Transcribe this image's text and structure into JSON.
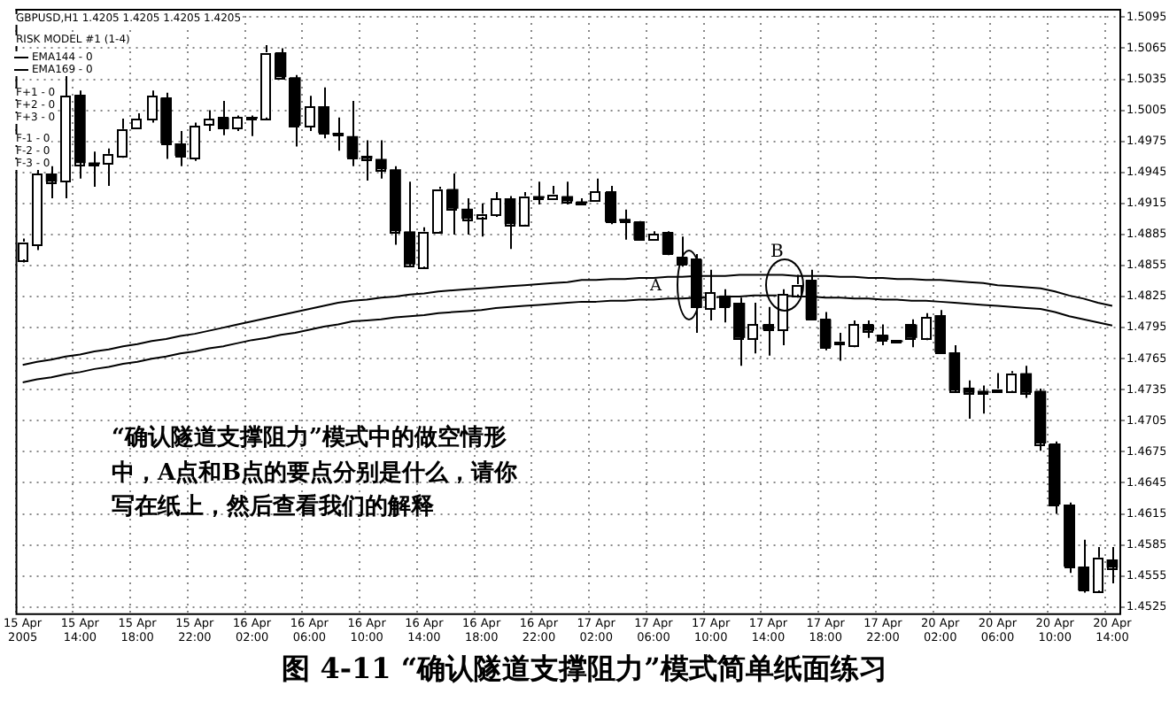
{
  "chart_data": {
    "type": "candlestick",
    "title": "图 4-11 “确认隧道支撑阻力”模式简单纸面练习",
    "categories": [
      "15 Apr 2005",
      null,
      null,
      null,
      "15 Apr 14:00",
      null,
      null,
      null,
      "15 Apr 18:00",
      null,
      null,
      null,
      "15 Apr 22:00",
      null,
      null,
      null,
      "16 Apr 02:00",
      null,
      null,
      null,
      "16 Apr 06:00",
      null,
      null,
      null,
      "16 Apr 10:00",
      null,
      null,
      null,
      "16 Apr 14:00",
      null,
      null,
      null,
      "16 Apr 18:00",
      null,
      null,
      null,
      "16 Apr 22:00",
      null,
      null,
      null,
      "17 Apr 02:00",
      null,
      null,
      null,
      "17 Apr 06:00",
      null,
      null,
      null,
      "17 Apr 10:00",
      null,
      null,
      null,
      "17 Apr 14:00",
      null,
      null,
      null,
      "17 Apr 18:00",
      null,
      null,
      null,
      "17 Apr 22:00",
      null,
      null,
      null,
      "20 Apr 02:00",
      null,
      null,
      null,
      "20 Apr 06:00",
      null,
      null,
      null,
      "20 Apr 10:00",
      null,
      null,
      null,
      "20 Apr 14:00"
    ],
    "series": [
      {
        "color": "#000000",
        "ohlc": [
          [
            1.4861,
            1.4881,
            1.4858,
            1.4878
          ],
          [
            1.4875,
            1.4948,
            1.487,
            1.4944
          ],
          [
            1.4944,
            1.4951,
            1.492,
            1.4936
          ],
          [
            1.4937,
            1.5041,
            1.492,
            1.5019
          ],
          [
            1.502,
            1.5024,
            1.4939,
            1.4954
          ],
          [
            1.4954,
            1.4965,
            1.4931,
            1.4953
          ],
          [
            1.4954,
            1.4968,
            1.4932,
            1.4963
          ],
          [
            1.4961,
            1.4997,
            1.4959,
            1.4987
          ],
          [
            1.4988,
            1.5002,
            1.4987,
            1.4997
          ],
          [
            1.4997,
            1.5024,
            1.4993,
            1.5019
          ],
          [
            1.5017,
            1.5022,
            1.4958,
            1.4973
          ],
          [
            1.4973,
            1.4985,
            1.4951,
            1.4961
          ],
          [
            1.4959,
            1.4993,
            1.4956,
            1.499
          ],
          [
            1.4992,
            1.5005,
            1.4985,
            1.4997
          ],
          [
            1.4998,
            1.5014,
            1.4981,
            1.4987
          ],
          [
            1.4988,
            1.5,
            1.4985,
            1.4998
          ],
          [
            1.4998,
            1.5,
            1.498,
            1.4997
          ],
          [
            1.4998,
            1.5068,
            1.4997,
            1.5061
          ],
          [
            1.5061,
            1.5065,
            1.5036,
            1.5037
          ],
          [
            1.5037,
            1.5039,
            1.497,
            1.499
          ],
          [
            1.499,
            1.5019,
            1.4985,
            1.5009
          ],
          [
            1.5009,
            1.5027,
            1.4978,
            1.4983
          ],
          [
            1.4983,
            1.4998,
            1.4966,
            1.4981
          ],
          [
            1.498,
            1.5014,
            1.4951,
            1.4959
          ],
          [
            1.4961,
            1.4976,
            1.4937,
            1.4958
          ],
          [
            1.4958,
            1.4976,
            1.4939,
            1.4948
          ],
          [
            1.4948,
            1.4951,
            1.4875,
            1.4888
          ],
          [
            1.4888,
            1.4936,
            1.4854,
            1.4856
          ],
          [
            1.4854,
            1.4892,
            1.4853,
            1.4888
          ],
          [
            1.4888,
            1.4931,
            1.4887,
            1.4929
          ],
          [
            1.4929,
            1.4944,
            1.4885,
            1.491
          ],
          [
            1.491,
            1.492,
            1.4885,
            1.49
          ],
          [
            1.4902,
            1.4915,
            1.4883,
            1.4905
          ],
          [
            1.4904,
            1.4926,
            1.4902,
            1.492
          ],
          [
            1.492,
            1.4922,
            1.4871,
            1.4895
          ],
          [
            1.4895,
            1.4926,
            1.4895,
            1.4922
          ],
          [
            1.4922,
            1.4936,
            1.4914,
            1.492
          ],
          [
            1.492,
            1.4932,
            1.4919,
            1.4924
          ],
          [
            1.4922,
            1.4936,
            1.4914,
            1.4917
          ],
          [
            1.4917,
            1.492,
            1.4914,
            1.4915
          ],
          [
            1.4917,
            1.4939,
            1.4917,
            1.4926
          ],
          [
            1.4926,
            1.4932,
            1.4895,
            1.4897
          ],
          [
            1.49,
            1.4909,
            1.488,
            1.4898
          ],
          [
            1.4897,
            1.4898,
            1.488,
            1.488
          ],
          [
            1.488,
            1.4888,
            1.488,
            1.4885
          ],
          [
            1.4887,
            1.4888,
            1.4865,
            1.4866
          ],
          [
            1.4863,
            1.4883,
            1.4854,
            1.4856
          ],
          [
            1.4861,
            1.4866,
            1.479,
            1.4814
          ],
          [
            1.4814,
            1.4851,
            1.4802,
            1.4829
          ],
          [
            1.4826,
            1.4832,
            1.48,
            1.4815
          ],
          [
            1.4819,
            1.4824,
            1.4758,
            1.4785
          ],
          [
            1.4785,
            1.4819,
            1.477,
            1.4798
          ],
          [
            1.4798,
            1.4815,
            1.4768,
            1.4793
          ],
          [
            1.4793,
            1.4832,
            1.4778,
            1.4827
          ],
          [
            1.4827,
            1.4846,
            1.4824,
            1.4837
          ],
          [
            1.4841,
            1.4851,
            1.4802,
            1.4803
          ],
          [
            1.4803,
            1.481,
            1.4773,
            1.4776
          ],
          [
            1.478,
            1.479,
            1.4763,
            1.4781
          ],
          [
            1.4778,
            1.4802,
            1.4776,
            1.4798
          ],
          [
            1.4798,
            1.4802,
            1.4785,
            1.4792
          ],
          [
            1.4788,
            1.4798,
            1.4778,
            1.4783
          ],
          [
            1.4781,
            1.4783,
            1.478,
            1.4781
          ],
          [
            1.4798,
            1.4803,
            1.4776,
            1.4785
          ],
          [
            1.4785,
            1.4809,
            1.4783,
            1.4805
          ],
          [
            1.4807,
            1.4812,
            1.477,
            1.4771
          ],
          [
            1.4771,
            1.4778,
            1.4732,
            1.4734
          ],
          [
            1.4737,
            1.4744,
            1.4707,
            1.4732
          ],
          [
            1.4734,
            1.4739,
            1.4712,
            1.4732
          ],
          [
            1.4734,
            1.4751,
            1.4732,
            1.4736
          ],
          [
            1.4734,
            1.4753,
            1.4732,
            1.4751
          ],
          [
            1.4751,
            1.4758,
            1.4727,
            1.4732
          ],
          [
            1.4734,
            1.4736,
            1.4676,
            1.4683
          ],
          [
            1.4683,
            1.4685,
            1.4615,
            1.4624
          ],
          [
            1.4624,
            1.4626,
            1.4558,
            1.4564
          ],
          [
            1.4564,
            1.459,
            1.4539,
            1.4541
          ],
          [
            1.4541,
            1.4583,
            1.4539,
            1.4573
          ],
          [
            1.4571,
            1.4583,
            1.4548,
            1.4563
          ]
        ],
        "colors": [
          "#ffffff",
          "#ffffff",
          "#000000",
          "#ffffff",
          "#000000",
          "#000000",
          "#ffffff",
          "#ffffff",
          "#ffffff",
          "#ffffff",
          "#000000",
          "#000000",
          "#ffffff",
          "#ffffff",
          "#000000",
          "#ffffff",
          "#000000",
          "#ffffff",
          "#000000",
          "#000000",
          "#ffffff",
          "#000000",
          "#000000",
          "#000000",
          "#000000",
          "#000000",
          "#000000",
          "#000000",
          "#ffffff",
          "#ffffff",
          "#000000",
          "#000000",
          "#ffffff",
          "#ffffff",
          "#000000",
          "#ffffff",
          "#000000",
          "#ffffff",
          "#000000",
          "#000000",
          "#ffffff",
          "#000000",
          "#000000",
          "#000000",
          "#ffffff",
          "#000000",
          "#000000",
          "#000000",
          "#ffffff",
          "#000000",
          "#000000",
          "#ffffff",
          "#000000",
          "#ffffff",
          "#ffffff",
          "#000000",
          "#000000",
          "#ffffff",
          "#ffffff",
          "#000000",
          "#000000",
          "#000000",
          "#000000",
          "#ffffff",
          "#000000",
          "#000000",
          "#000000",
          "#000000",
          "#ffffff",
          "#ffffff",
          "#000000",
          "#000000",
          "#000000",
          "#000000",
          "#000000",
          "#ffffff",
          "#000000"
        ]
      },
      {
        "type": "line",
        "name": "EMA144 - 0",
        "color": "#000000",
        "values": [
          1.4759,
          1.4762,
          1.4764,
          1.4767,
          1.4769,
          1.4772,
          1.4774,
          1.4777,
          1.4779,
          1.4782,
          1.4784,
          1.4787,
          1.4789,
          1.4792,
          1.4795,
          1.4798,
          1.4801,
          1.4804,
          1.4807,
          1.481,
          1.4813,
          1.4816,
          1.4819,
          1.4821,
          1.4822,
          1.4824,
          1.4825,
          1.4827,
          1.4828,
          1.483,
          1.4831,
          1.4832,
          1.4833,
          1.4834,
          1.4835,
          1.4836,
          1.4837,
          1.4838,
          1.4839,
          1.4841,
          1.4841,
          1.4842,
          1.4842,
          1.4843,
          1.4843,
          1.4844,
          1.4844,
          1.4845,
          1.4845,
          1.4845,
          1.4846,
          1.4846,
          1.4846,
          1.4846,
          1.4845,
          1.4845,
          1.4845,
          1.4844,
          1.4844,
          1.4843,
          1.4843,
          1.4842,
          1.4842,
          1.4841,
          1.4841,
          1.484,
          1.4839,
          1.4838,
          1.4836,
          1.4835,
          1.4834,
          1.4833,
          1.483,
          1.4826,
          1.4823,
          1.4819,
          1.4816
        ]
      },
      {
        "type": "line",
        "name": "EMA169 - 0",
        "color": "#000000",
        "values": [
          1.4742,
          1.4745,
          1.4747,
          1.475,
          1.4752,
          1.4755,
          1.4757,
          1.476,
          1.4762,
          1.4765,
          1.4767,
          1.477,
          1.4772,
          1.4775,
          1.4777,
          1.478,
          1.4783,
          1.4785,
          1.4788,
          1.479,
          1.4793,
          1.4796,
          1.4798,
          1.4801,
          1.4802,
          1.4803,
          1.4805,
          1.4806,
          1.4807,
          1.4809,
          1.481,
          1.4811,
          1.4812,
          1.4814,
          1.4815,
          1.4816,
          1.4817,
          1.4818,
          1.4819,
          1.482,
          1.482,
          1.4821,
          1.4821,
          1.4822,
          1.4822,
          1.4823,
          1.4823,
          1.4824,
          1.4824,
          1.4825,
          1.4825,
          1.4826,
          1.4826,
          1.4826,
          1.4825,
          1.4825,
          1.4824,
          1.4824,
          1.4823,
          1.4823,
          1.4822,
          1.4822,
          1.4821,
          1.4821,
          1.482,
          1.4819,
          1.4818,
          1.4817,
          1.4816,
          1.4815,
          1.4814,
          1.4813,
          1.481,
          1.4806,
          1.4803,
          1.48,
          1.4797
        ]
      }
    ],
    "ylim": [
      1.4519,
      1.5103
    ],
    "yticks": [
      1.5095,
      1.5065,
      1.5035,
      1.5005,
      1.4975,
      1.4945,
      1.4915,
      1.4885,
      1.4855,
      1.4825,
      1.4795,
      1.4765,
      1.4735,
      1.4705,
      1.4675,
      1.4645,
      1.4615,
      1.4585,
      1.4555,
      1.4525
    ],
    "grid": true,
    "legend": "top left",
    "annotations": [
      "GBPUSD,H1 1.4205 1.4205 1.4205 1.4205",
      "RISK MODEL #1 (1-4)",
      "F+1 - 0",
      "F+2 - 0",
      "F+3 - 0",
      "F-1 - 0",
      "F-2 - 0",
      "F-3 - 0",
      "A",
      "B",
      "“确认隧道支撑阻力”模式中的做空情形中，A点和B点的要点分别是什么，请你写在纸上，然后查看我们的解释"
    ]
  }
}
